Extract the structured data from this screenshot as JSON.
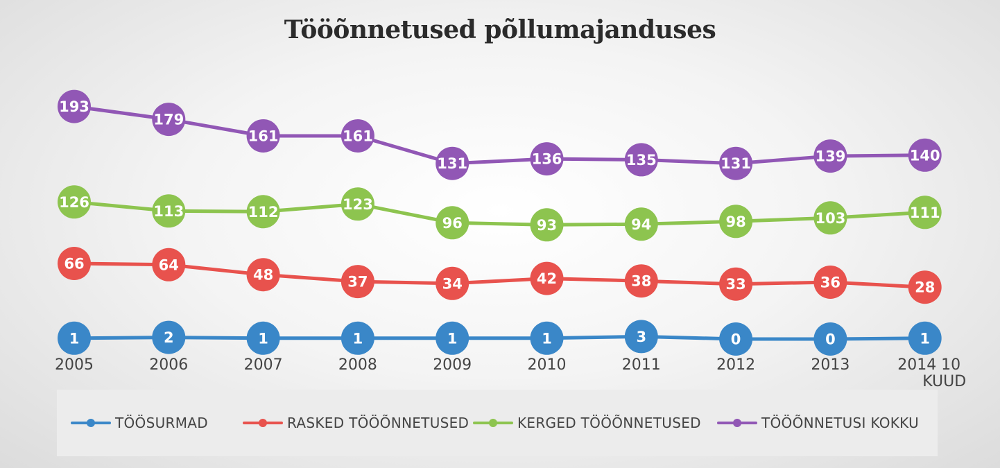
{
  "title": "Tööõnnetused põllumajanduses",
  "chart_data": {
    "type": "line",
    "title": "Tööõnnetused põllumajanduses",
    "categories": [
      "2005",
      "2006",
      "2007",
      "2008",
      "2009",
      "2010",
      "2011",
      "2012",
      "2013",
      "2014 10"
    ],
    "category_note": "KUUD",
    "xlabel": "",
    "ylabel": "",
    "grid": false,
    "legend_position": "bottom",
    "series": [
      {
        "name": "TÖÖSURMAD",
        "color": "#3a87c8",
        "values": [
          1,
          2,
          1,
          1,
          1,
          1,
          3,
          0,
          0,
          1
        ]
      },
      {
        "name": "RASKED TÖÖÕNNETUSED",
        "color": "#e8524d",
        "values": [
          66,
          64,
          48,
          37,
          34,
          42,
          38,
          33,
          36,
          28
        ]
      },
      {
        "name": "KERGED TÖÖÕNNETUSED",
        "color": "#8dc44f",
        "values": [
          126,
          113,
          112,
          123,
          96,
          93,
          94,
          98,
          103,
          111
        ]
      },
      {
        "name": "TÖÖÕNNETUSI KOKKU",
        "color": "#9157b5",
        "values": [
          193,
          179,
          161,
          161,
          131,
          136,
          135,
          131,
          139,
          140
        ]
      }
    ]
  }
}
